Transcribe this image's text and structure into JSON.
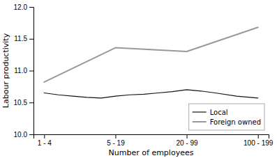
{
  "chart_data": {
    "type": "line",
    "xlabel": "Number of employees",
    "ylabel": "Labour productivity",
    "xlim": [
      -0.15,
      3.15
    ],
    "xticks": [
      {
        "value": 0,
        "label": "1 - 4"
      },
      {
        "value": 1,
        "label": "5 - 19"
      },
      {
        "value": 2,
        "label": "20 - 99"
      },
      {
        "value": 3,
        "label": "100 - 199"
      }
    ],
    "ylim": [
      10.0,
      12.0
    ],
    "yticks": [
      {
        "value": 10.0,
        "label": "10.0"
      },
      10.5,
      {
        "value": 11.0,
        "label": "11.0"
      },
      11.5,
      {
        "value": 12.0,
        "label": "12.0"
      }
    ],
    "grid": false,
    "legend": "lower right",
    "series": [
      {
        "name": "Local",
        "color": "#111111",
        "x": [
          0.0,
          0.2,
          0.4,
          0.6,
          0.8,
          1.0,
          1.2,
          1.4,
          1.6,
          1.8,
          2.0,
          2.2,
          2.4,
          2.7,
          3.0
        ],
        "values": [
          10.65,
          10.62,
          10.6,
          10.58,
          10.57,
          10.6,
          10.62,
          10.63,
          10.65,
          10.67,
          10.7,
          10.68,
          10.65,
          10.6,
          10.57
        ]
      },
      {
        "name": "Foreign owned",
        "color": "#999999",
        "x": [
          0,
          1,
          2,
          3
        ],
        "values": [
          10.82,
          11.36,
          11.3,
          11.68
        ]
      }
    ]
  }
}
